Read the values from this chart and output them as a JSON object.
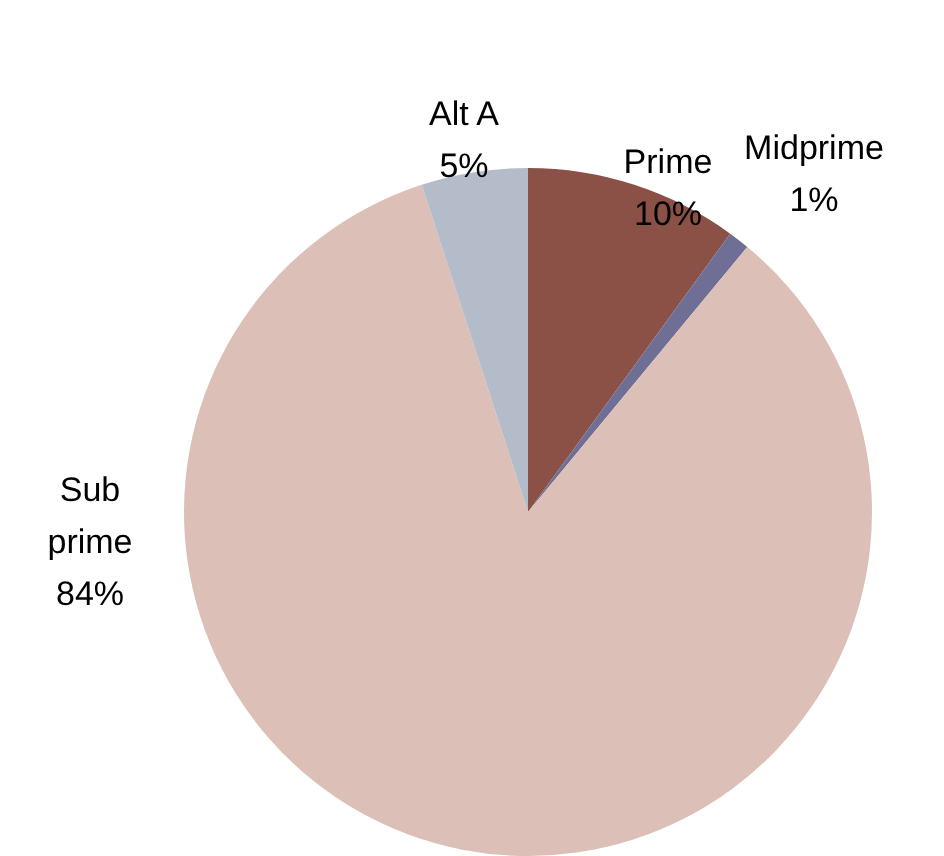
{
  "chart_data": {
    "type": "pie",
    "categories": [
      "Prime",
      "Midprime",
      "Sub prime",
      "Alt A"
    ],
    "values": [
      10,
      1,
      84,
      5
    ],
    "colors": [
      "#8b5147",
      "#6f6f95",
      "#dcbfb7",
      "#b3bcc8"
    ],
    "value_labels": [
      "10%",
      "1%",
      "84%",
      "5%"
    ],
    "legend": false
  }
}
